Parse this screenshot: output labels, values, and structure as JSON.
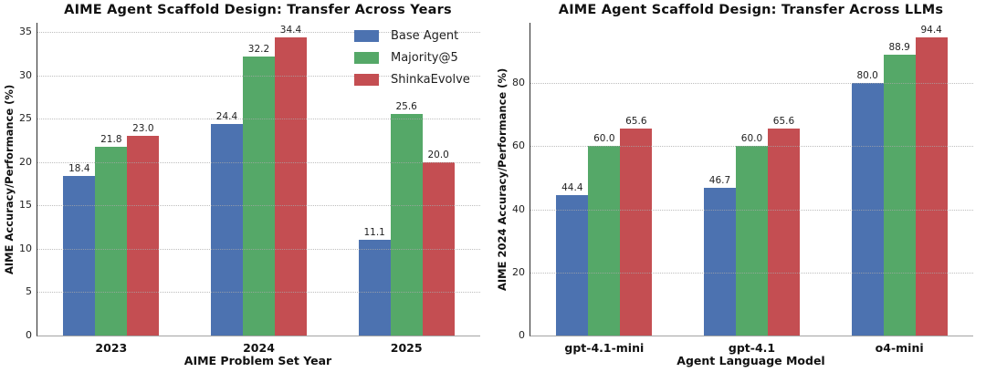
{
  "figure": {
    "background": "#ffffff",
    "grid_color": "#aaaaaa",
    "left_spine_color": "#2b2b2b",
    "bottom_spine_color": "#a3a3a3"
  },
  "chart_data": [
    {
      "type": "bar",
      "title": "AIME Agent Scaffold Design: Transfer Across Years",
      "xlabel": "AIME Problem Set Year",
      "ylabel": "AIME Accuracy/Performance (%)",
      "categories": [
        "2023",
        "2024",
        "2025"
      ],
      "series": [
        {
          "name": "Base Agent",
          "color": "#4C72B0",
          "values": [
            18.4,
            24.4,
            11.1
          ]
        },
        {
          "name": "Majority@5",
          "color": "#55A868",
          "values": [
            21.8,
            32.2,
            25.6
          ]
        },
        {
          "name": "ShinkaEvolve",
          "color": "#C44E52",
          "values": [
            23.0,
            34.4,
            20.0
          ]
        }
      ],
      "ylim": [
        0,
        36.1
      ],
      "yticks": [
        0,
        5,
        10,
        15,
        20,
        25,
        30,
        35
      ],
      "grid": true,
      "value_labels": true,
      "legend": {
        "show": true,
        "position": "upper-right",
        "entries": [
          "Base Agent",
          "Majority@5",
          "ShinkaEvolve"
        ]
      }
    },
    {
      "type": "bar",
      "title": "AIME Agent Scaffold Design: Transfer Across LLMs",
      "xlabel": "Agent Language Model",
      "ylabel": "AIME 2024 Accuracy/Performance (%)",
      "categories": [
        "gpt-4.1-mini",
        "gpt-4.1",
        "o4-mini"
      ],
      "series": [
        {
          "name": "Base Agent",
          "color": "#4C72B0",
          "values": [
            44.4,
            46.7,
            80.0
          ]
        },
        {
          "name": "Majority@5",
          "color": "#55A868",
          "values": [
            60.0,
            60.0,
            88.9
          ]
        },
        {
          "name": "ShinkaEvolve",
          "color": "#C44E52",
          "values": [
            65.6,
            65.6,
            94.4
          ]
        }
      ],
      "ylim": [
        0,
        99.1
      ],
      "yticks": [
        0,
        20,
        40,
        60,
        80
      ],
      "grid": true,
      "value_labels": true,
      "legend": {
        "show": false,
        "entries": []
      }
    }
  ]
}
